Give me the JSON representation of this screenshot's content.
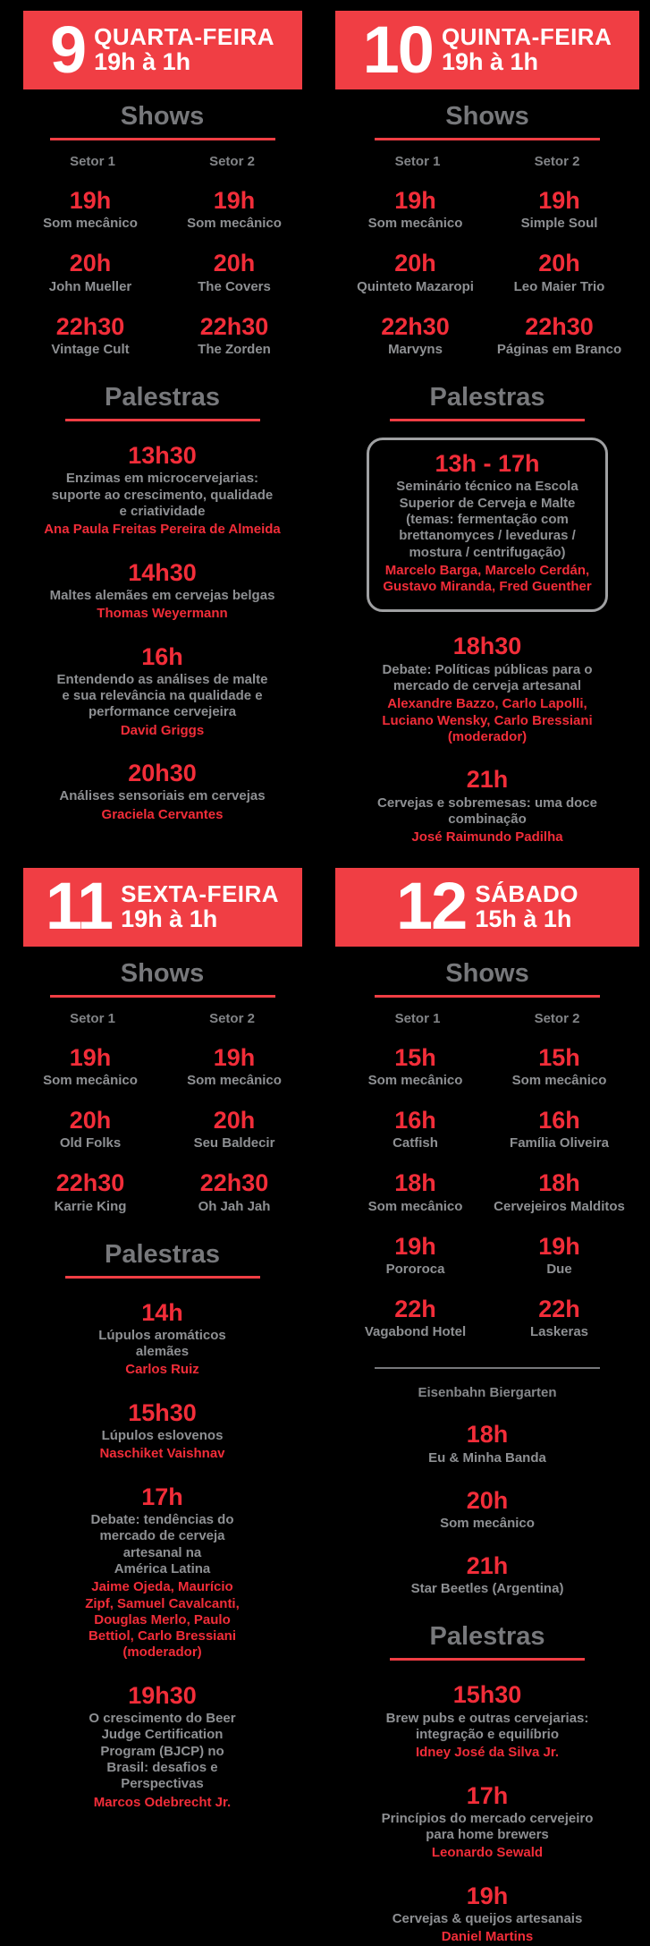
{
  "poster": {
    "headings": {
      "shows": "Shows",
      "palestras": "Palestras"
    },
    "sector_labels": [
      "Setor 1",
      "Setor 2"
    ],
    "colors": {
      "background": "#000000",
      "banner_red": "#f03e44",
      "accent_red": "#f22d39",
      "heading_gray": "#77787b",
      "text_gray": "#8e9093",
      "label_gray": "#828487",
      "box_border_gray": "#9fa0a2",
      "banner_text": "#ffffff"
    }
  },
  "days": [
    {
      "number": "9",
      "label": "QUARTA-FEIRA",
      "hours": "19h à 1h",
      "shows": [
        {
          "t1": "19h",
          "a1": "Som mecânico",
          "t2": "19h",
          "a2": "Som mecânico"
        },
        {
          "t1": "20h",
          "a1": "John Mueller",
          "t2": "20h",
          "a2": "The Covers"
        },
        {
          "t1": "22h30",
          "a1": "Vintage Cult",
          "t2": "22h30",
          "a2": "The Zorden"
        }
      ],
      "talks": [
        {
          "time": "13h30",
          "desc": "Enzimas em microcervejarias:\nsuporte ao crescimento, qualidade\ne criatividade",
          "speakers": "Ana Paula Freitas Pereira de Almeida"
        },
        {
          "time": "14h30",
          "desc": "Maltes alemães em cervejas belgas",
          "speakers": "Thomas Weyermann"
        },
        {
          "time": "16h",
          "desc": "Entendendo as análises de malte\ne sua relevância na qualidade e\nperformance cervejeira",
          "speakers": "David Griggs"
        },
        {
          "time": "20h30",
          "desc": "Análises sensoriais em cervejas",
          "speakers": "Graciela Cervantes"
        }
      ]
    },
    {
      "number": "10",
      "label": "QUINTA-FEIRA",
      "hours": "19h à 1h",
      "shows": [
        {
          "t1": "19h",
          "a1": "Som mecânico",
          "t2": "19h",
          "a2": "Simple Soul"
        },
        {
          "t1": "20h",
          "a1": "Quinteto Mazaropi",
          "t2": "20h",
          "a2": "Leo Maier Trio"
        },
        {
          "t1": "22h30",
          "a1": "Marvyns",
          "t2": "22h30",
          "a2": "Páginas em Branco"
        }
      ],
      "talks": [
        {
          "time": "13h - 17h",
          "desc": "Seminário técnico na Escola\nSuperior de Cerveja e Malte\n(temas: fermentação com\nbrettanomyces / leveduras /\nmostura / centrifugação)",
          "speakers": "Marcelo Barga, Marcelo Cerdán,\nGustavo Miranda, Fred Guenther"
        },
        {
          "time": "18h30",
          "desc": "Debate: Políticas públicas para o\nmercado de cerveja artesanal",
          "speakers": "Alexandre Bazzo, Carlo Lapolli,\nLuciano Wensky, Carlo Bressiani\n(moderador)"
        },
        {
          "time": "21h",
          "desc": "Cervejas e sobremesas: uma doce\ncombinação",
          "speakers": "José Raimundo Padilha"
        }
      ]
    },
    {
      "number": "11",
      "label": "SEXTA-FEIRA",
      "hours": "19h à 1h",
      "shows": [
        {
          "t1": "19h",
          "a1": "Som mecânico",
          "t2": "19h",
          "a2": "Som mecânico"
        },
        {
          "t1": "20h",
          "a1": "Old Folks",
          "t2": "20h",
          "a2": "Seu Baldecir"
        },
        {
          "t1": "22h30",
          "a1": "Karrie King",
          "t2": "22h30",
          "a2": "Oh Jah Jah"
        }
      ],
      "talks": [
        {
          "time": "14h",
          "desc": "Lúpulos aromáticos\nalemães",
          "speakers": "Carlos Ruiz"
        },
        {
          "time": "15h30",
          "desc": "Lúpulos eslovenos",
          "speakers": "Naschiket Vaishnav"
        },
        {
          "time": "17h",
          "desc": "Debate: tendências do\nmercado de cerveja\nartesanal na\nAmérica Latina",
          "speakers": "Jaime Ojeda, Maurício\nZipf, Samuel Cavalcanti,\nDouglas Merlo, Paulo\nBettiol, Carlo Bressiani\n(moderador)"
        },
        {
          "time": "19h30",
          "desc": "O crescimento do Beer\nJudge Certification\nProgram (BJCP) no\nBrasil: desafios e\nPerspectivas",
          "speakers": "Marcos Odebrecht Jr."
        }
      ]
    },
    {
      "number": "12",
      "label": "SÁBADO",
      "hours": "15h à 1h",
      "shows": [
        {
          "t1": "15h",
          "a1": "Som mecânico",
          "t2": "15h",
          "a2": "Som mecânico"
        },
        {
          "t1": "16h",
          "a1": "Catfish",
          "t2": "16h",
          "a2": "Família Oliveira"
        },
        {
          "t1": "18h",
          "a1": "Som mecânico",
          "t2": "18h",
          "a2": "Cervejeiros Malditos"
        },
        {
          "t1": "19h",
          "a1": "Pororoca",
          "t2": "19h",
          "a2": "Due"
        },
        {
          "t1": "22h",
          "a1": "Vagabond Hotel",
          "t2": "22h",
          "a2": "Laskeras"
        }
      ],
      "venue": {
        "name": "Eisenbahn Biergarten",
        "shows": [
          {
            "time": "18h",
            "act": "Eu & Minha Banda"
          },
          {
            "time": "20h",
            "act": "Som mecânico"
          },
          {
            "time": "21h",
            "act": "Star Beetles (Argentina)"
          }
        ]
      },
      "talks": [
        {
          "time": "15h30",
          "desc": "Brew pubs e outras cervejarias:\nintegração e equilíbrio",
          "speakers": "Idney José da Silva Jr."
        },
        {
          "time": "17h",
          "desc": "Princípios do mercado cervejeiro\npara home brewers",
          "speakers": "Leonardo Sewald"
        },
        {
          "time": "19h",
          "desc": "Cervejas & queijos artesanais",
          "speakers": "Daniel Martins"
        }
      ]
    }
  ]
}
